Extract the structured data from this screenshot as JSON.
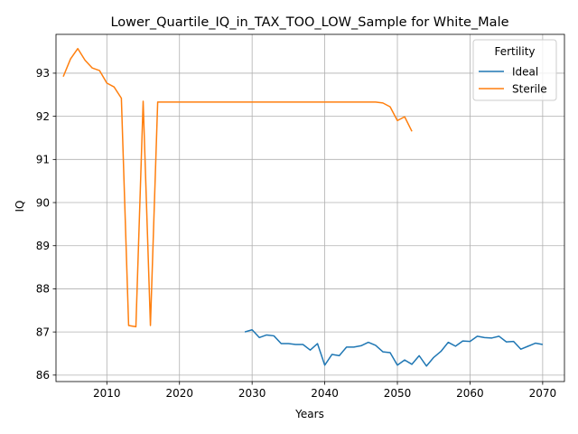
{
  "chart_data": {
    "type": "line",
    "title": "Lower_Quartile_IQ_in_TAX_TOO_LOW_Sample for White_Male",
    "xlabel": "Years",
    "ylabel": "IQ",
    "xlim": [
      2003,
      2073
    ],
    "ylim": [
      85.85,
      93.9
    ],
    "xticks": [
      2010,
      2020,
      2030,
      2040,
      2050,
      2060,
      2070
    ],
    "yticks": [
      86,
      87,
      88,
      89,
      90,
      91,
      92,
      93
    ],
    "grid": true,
    "legend": {
      "title": "Fertility",
      "placement": "top-right"
    },
    "series": [
      {
        "name": "Ideal",
        "color": "#1f77b4",
        "x": [
          2029,
          2030,
          2031,
          2032,
          2033,
          2034,
          2035,
          2036,
          2037,
          2038,
          2039,
          2040,
          2041,
          2042,
          2043,
          2044,
          2045,
          2046,
          2047,
          2048,
          2049,
          2050,
          2051,
          2052,
          2053,
          2054,
          2055,
          2056,
          2057,
          2058,
          2059,
          2060,
          2061,
          2062,
          2063,
          2064,
          2065,
          2066,
          2067,
          2068,
          2069,
          2070
        ],
        "y": [
          87.0,
          87.05,
          86.87,
          86.93,
          86.91,
          86.73,
          86.73,
          86.71,
          86.71,
          86.58,
          86.73,
          86.23,
          86.48,
          86.45,
          86.65,
          86.65,
          86.68,
          86.76,
          86.69,
          86.54,
          86.52,
          86.23,
          86.35,
          86.25,
          86.45,
          86.21,
          86.41,
          86.55,
          86.76,
          86.67,
          86.79,
          86.78,
          86.9,
          86.87,
          86.86,
          86.9,
          86.77,
          86.78,
          86.6,
          86.67,
          86.74,
          86.71
        ]
      },
      {
        "name": "Sterile",
        "color": "#ff7f0e",
        "x": [
          2004,
          2005,
          2006,
          2007,
          2008,
          2009,
          2010,
          2011,
          2012,
          2013,
          2014,
          2015,
          2016,
          2017,
          2018,
          2019,
          2020,
          2021,
          2022,
          2023,
          2024,
          2025,
          2026,
          2027,
          2028,
          2029,
          2030,
          2031,
          2032,
          2033,
          2034,
          2035,
          2036,
          2037,
          2038,
          2039,
          2040,
          2041,
          2042,
          2043,
          2044,
          2045,
          2046,
          2047,
          2048,
          2049,
          2050,
          2051,
          2052
        ],
        "y": [
          92.92,
          93.33,
          93.57,
          93.3,
          93.12,
          93.06,
          92.77,
          92.68,
          92.42,
          87.15,
          87.12,
          92.35,
          87.15,
          92.33,
          92.33,
          92.33,
          92.33,
          92.33,
          92.33,
          92.33,
          92.33,
          92.33,
          92.33,
          92.33,
          92.33,
          92.33,
          92.33,
          92.33,
          92.33,
          92.33,
          92.33,
          92.33,
          92.33,
          92.33,
          92.33,
          92.33,
          92.33,
          92.33,
          92.33,
          92.33,
          92.33,
          92.33,
          92.33,
          92.33,
          92.31,
          92.22,
          91.9,
          91.99,
          91.65
        ]
      }
    ]
  }
}
